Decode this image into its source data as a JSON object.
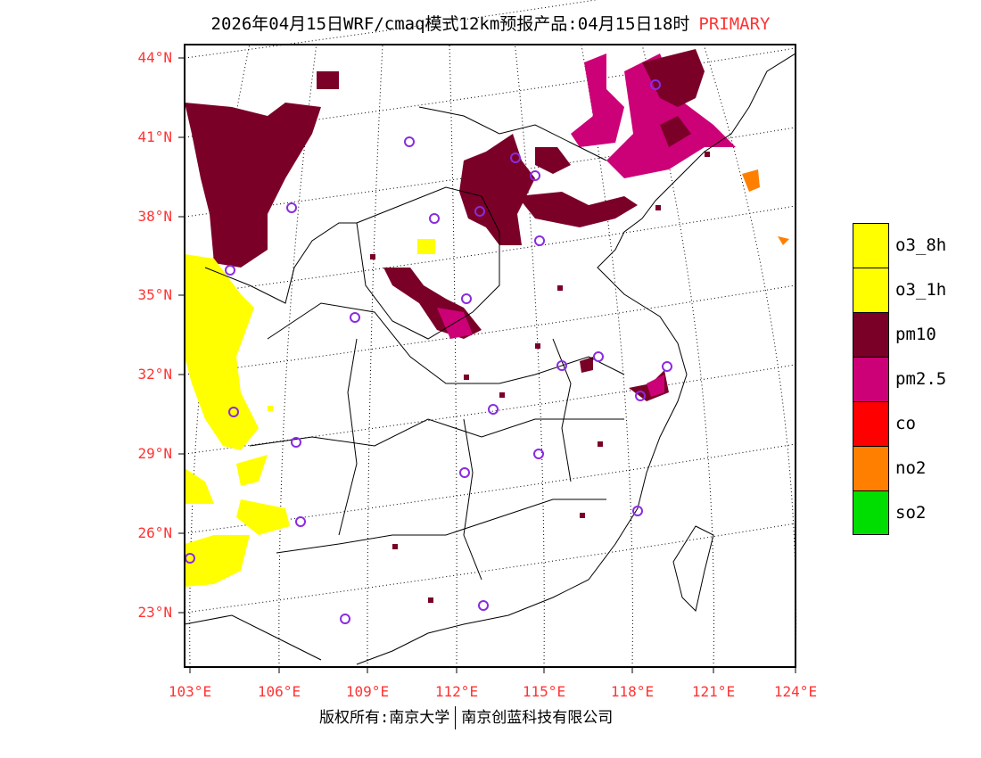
{
  "title": {
    "main": "2026年04月15日WRF/cmaq模式12km预报产品:04月15日18时",
    "product": "PRIMARY"
  },
  "lat_labels": [
    "44°N",
    "41°N",
    "38°N",
    "35°N",
    "32°N",
    "29°N",
    "26°N",
    "23°N"
  ],
  "lon_labels": [
    "103°E",
    "106°E",
    "109°E",
    "112°E",
    "115°E",
    "118°E",
    "121°E",
    "124°E"
  ],
  "legend": [
    {
      "label": "o3_8h",
      "color": "#ffff00"
    },
    {
      "label": "o3_1h",
      "color": "#ffff00"
    },
    {
      "label": "pm10",
      "color": "#7a0028"
    },
    {
      "label": "pm2.5",
      "color": "#cc0077"
    },
    {
      "label": "co",
      "color": "#ff0000"
    },
    {
      "label": "no2",
      "color": "#ff8000"
    },
    {
      "label": "so2",
      "color": "#00dd00"
    }
  ],
  "footer": {
    "left": "版权所有:南京大学",
    "right": "南京创蓝科技有限公司"
  }
}
